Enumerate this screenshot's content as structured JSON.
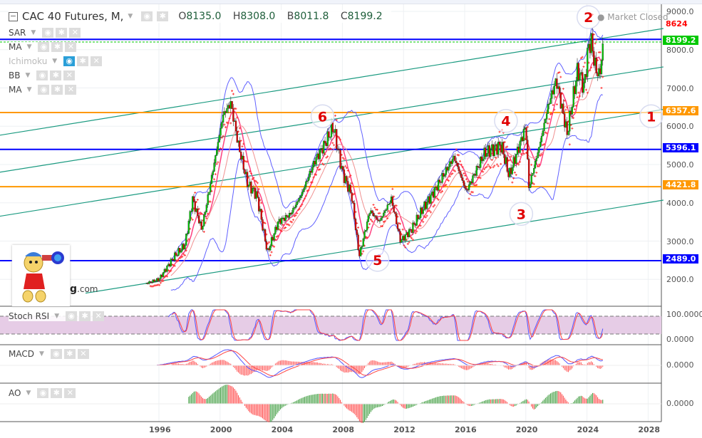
{
  "header": {
    "title": "CAC 40 Futures, M,",
    "open_label": "O",
    "open": "8135.0",
    "high_label": "H",
    "high": "8308.0",
    "low_label": "B",
    "low": "8011.8",
    "close_label": "C",
    "close": "8199.2",
    "status": "Market Closed"
  },
  "indicators": [
    {
      "label": "SAR"
    },
    {
      "label": "MA"
    },
    {
      "label": "Ichimoku",
      "active": true
    },
    {
      "label": "BB"
    },
    {
      "label": "MA"
    }
  ],
  "subpanels": [
    {
      "label": "Stoch RSI",
      "axis": [
        "100.0000",
        "0.0000"
      ]
    },
    {
      "label": "MACD",
      "axis": [
        "0.0000"
      ]
    },
    {
      "label": "AO",
      "axis": [
        "0.0000"
      ]
    }
  ],
  "logo": {
    "text": "g",
    "suffix": ".com"
  },
  "chart_data": {
    "type": "candlestick",
    "interval": "monthly",
    "y_ticks": [
      "9000.0",
      "8000.0",
      "7000.0",
      "6000.0",
      "5000.0",
      "4000.0",
      "3000.0",
      "2000.0"
    ],
    "x_ticks": [
      "1996",
      "2000",
      "2004",
      "2008",
      "2012",
      "2016",
      "2020",
      "2024",
      "2028"
    ],
    "ylim": [
      1700,
      9300
    ],
    "xlim": [
      1985.6,
      2029
    ],
    "grid": true,
    "close_path": [
      [
        1995.2,
        1900
      ],
      [
        1996,
        2000
      ],
      [
        1997,
        2600
      ],
      [
        1997.7,
        2900
      ],
      [
        1998.2,
        4100
      ],
      [
        1998.8,
        3300
      ],
      [
        1999.6,
        5000
      ],
      [
        2000.2,
        6300
      ],
      [
        2000.7,
        6600
      ],
      [
        2001.2,
        5500
      ],
      [
        2001.8,
        4500
      ],
      [
        2002.4,
        4200
      ],
      [
        2003.1,
        2700
      ],
      [
        2003.8,
        3500
      ],
      [
        2004.6,
        3700
      ],
      [
        2005.3,
        4200
      ],
      [
        2006.2,
        5100
      ],
      [
        2006.8,
        5500
      ],
      [
        2007.4,
        6000
      ],
      [
        2008,
        4800
      ],
      [
        2008.6,
        4200
      ],
      [
        2009.1,
        2600
      ],
      [
        2009.8,
        3800
      ],
      [
        2010.4,
        3500
      ],
      [
        2011.2,
        4100
      ],
      [
        2011.8,
        3000
      ],
      [
        2012.5,
        3300
      ],
      [
        2013.2,
        3800
      ],
      [
        2014,
        4300
      ],
      [
        2015.3,
        5200
      ],
      [
        2016.1,
        4300
      ],
      [
        2017.3,
        5300
      ],
      [
        2018.4,
        5500
      ],
      [
        2018.9,
        4700
      ],
      [
        2020,
        6000
      ],
      [
        2020.2,
        4400
      ],
      [
        2020.9,
        5500
      ],
      [
        2021.5,
        6600
      ],
      [
        2022,
        7200
      ],
      [
        2022.7,
        5800
      ],
      [
        2023.4,
        7500
      ],
      [
        2023.8,
        7000
      ],
      [
        2024.1,
        8100
      ],
      [
        2024.3,
        8200
      ],
      [
        2024.5,
        7600
      ],
      [
        2024.8,
        7300
      ],
      [
        2025.1,
        8199.2
      ]
    ],
    "levels": [
      {
        "value": 8624,
        "label": "8624",
        "color": "#ff0000",
        "line": false
      },
      {
        "value": 8270,
        "label": "",
        "color": "#0000ff",
        "line": true
      },
      {
        "value": 8199.2,
        "label": "8199.2",
        "color": "#00c800",
        "line": true,
        "dashed": true
      },
      {
        "value": 6357.6,
        "label": "6357.6",
        "color": "#ff9800",
        "line": true
      },
      {
        "value": 5396.1,
        "label": "5396.1",
        "color": "#0000ff",
        "line": true
      },
      {
        "value": 4421.8,
        "label": "4421.8",
        "color": "#ff9800",
        "line": true
      },
      {
        "value": 2489.0,
        "label": "2489.0",
        "color": "#0000ff",
        "line": true
      }
    ],
    "channel_lines": [
      [
        [
          1985.6,
          5766
        ],
        [
          2029,
          8554
        ]
      ],
      [
        [
          1985.6,
          4800
        ],
        [
          2029,
          7550
        ]
      ],
      [
        [
          1985.6,
          3650
        ],
        [
          2029,
          6440
        ]
      ],
      [
        [
          1991.2,
          1640
        ],
        [
          2029,
          4070
        ]
      ]
    ],
    "wave_labels": [
      {
        "text": "1",
        "x": 2028.2,
        "y": 6260
      },
      {
        "text": "2",
        "x": 2024.1,
        "y": 8850
      },
      {
        "text": "3",
        "x": 2019.7,
        "y": 3710
      },
      {
        "text": "4",
        "x": 2018.7,
        "y": 6140
      },
      {
        "text": "5",
        "x": 2010.3,
        "y": 2510
      },
      {
        "text": "6",
        "x": 2006.7,
        "y": 6260
      }
    ],
    "colors": {
      "up": "#00c800",
      "down": "#e00000",
      "bb": "#6060ff",
      "ma": "#ff4080",
      "sar": "#ff3030",
      "channel": "#1a9a80",
      "stoch_k": "#5555ff",
      "stoch_d": "#ff4444",
      "stoch_band": "#e6cce6"
    }
  }
}
